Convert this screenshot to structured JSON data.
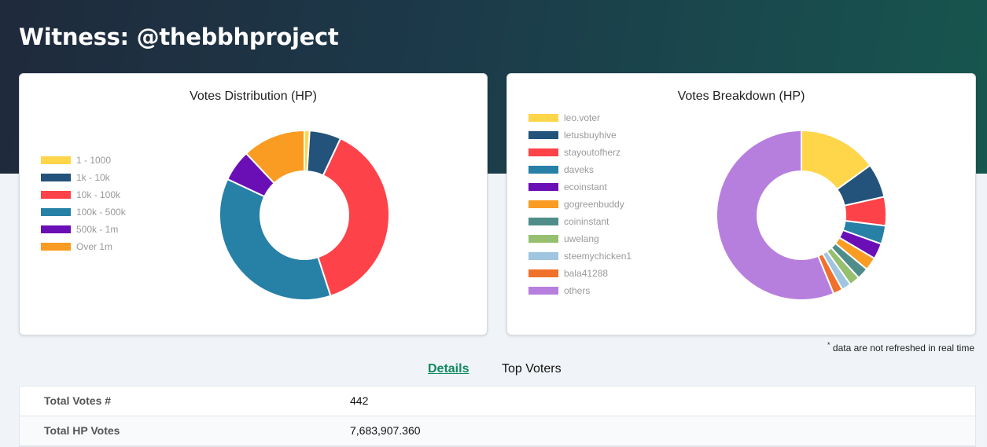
{
  "page": {
    "title": "Witness: @thebbhproject"
  },
  "chart_data": [
    {
      "type": "pie",
      "title": "Votes Distribution (HP)",
      "legend_position": "left",
      "categories": [
        "1 - 1000",
        "1k - 10k",
        "10k - 100k",
        "100k - 500k",
        "500k - 1m",
        "Over 1m"
      ],
      "values": [
        1,
        6,
        38,
        37,
        6,
        12
      ],
      "colors": [
        "#ffd54a",
        "#23527a",
        "#fd4349",
        "#2780a6",
        "#6a0fb5",
        "#fa9b22"
      ]
    },
    {
      "type": "pie",
      "title": "Votes Breakdown (HP)",
      "legend_position": "left",
      "categories": [
        "leo.voter",
        "letusbuyhive",
        "stayoutofherz",
        "daveks",
        "ecoinstant",
        "gogreenbuddy",
        "coininstant",
        "uwelang",
        "steemychicken1",
        "bala41288",
        "others"
      ],
      "values": [
        15,
        6.5,
        5.5,
        3.5,
        3,
        2.5,
        2.2,
        2,
        1.8,
        1.8,
        56.2
      ],
      "colors": [
        "#ffd54a",
        "#23527a",
        "#fd4349",
        "#2780a6",
        "#6a0fb5",
        "#fa9b22",
        "#4f8d8a",
        "#96c06f",
        "#a0c5e0",
        "#f0712b",
        "#b77fdd"
      ]
    }
  ],
  "note": {
    "marker": "*",
    "text": " data are not refreshed in real time"
  },
  "tabs": [
    {
      "label": "Details",
      "active": true
    },
    {
      "label": "Top Voters",
      "active": false
    }
  ],
  "details": [
    {
      "label": "Total Votes #",
      "value": "442"
    },
    {
      "label": "Total HP Votes",
      "value": "7,683,907.360"
    }
  ]
}
